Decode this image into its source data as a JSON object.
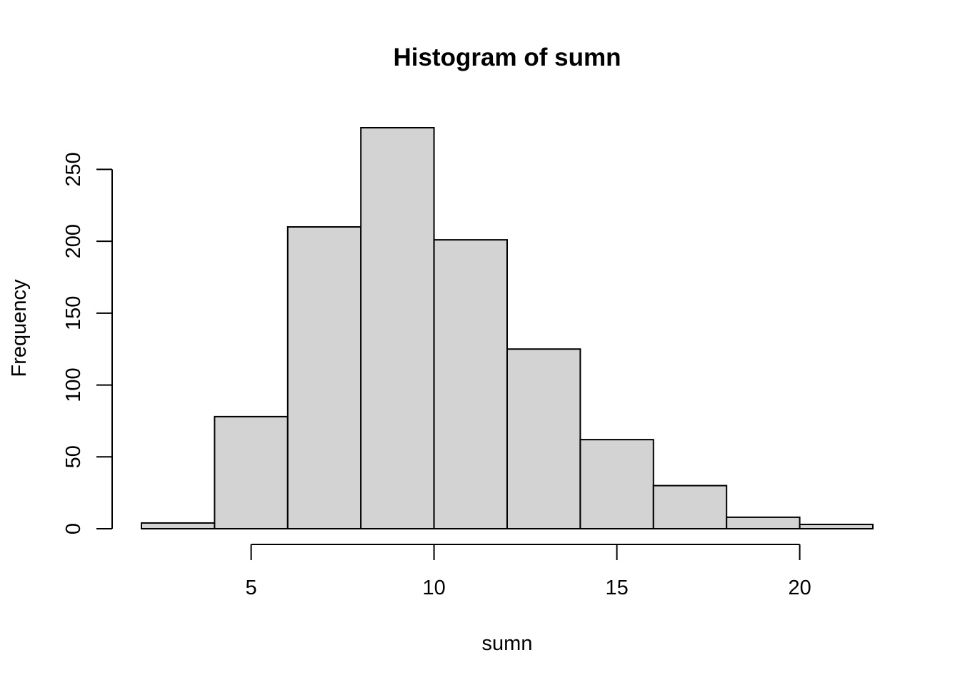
{
  "chart_data": {
    "type": "bar",
    "title": "Histogram of sumn",
    "xlabel": "sumn",
    "ylabel": "Frequency",
    "bins": [
      {
        "start": 2,
        "end": 4,
        "count": 4
      },
      {
        "start": 4,
        "end": 6,
        "count": 78
      },
      {
        "start": 6,
        "end": 8,
        "count": 210
      },
      {
        "start": 8,
        "end": 10,
        "count": 279
      },
      {
        "start": 10,
        "end": 12,
        "count": 201
      },
      {
        "start": 12,
        "end": 14,
        "count": 125
      },
      {
        "start": 14,
        "end": 16,
        "count": 62
      },
      {
        "start": 16,
        "end": 18,
        "count": 30
      },
      {
        "start": 18,
        "end": 20,
        "count": 8
      },
      {
        "start": 20,
        "end": 22,
        "count": 3
      }
    ],
    "xlim": [
      2,
      22
    ],
    "ylim": [
      0,
      279
    ],
    "x_ticks": [
      "5",
      "10",
      "15",
      "20"
    ],
    "y_ticks": [
      "0",
      "50",
      "100",
      "150",
      "200",
      "250"
    ],
    "bar_fill": "#d3d3d3",
    "bar_stroke": "#000000",
    "grid": false,
    "legend": "none"
  }
}
